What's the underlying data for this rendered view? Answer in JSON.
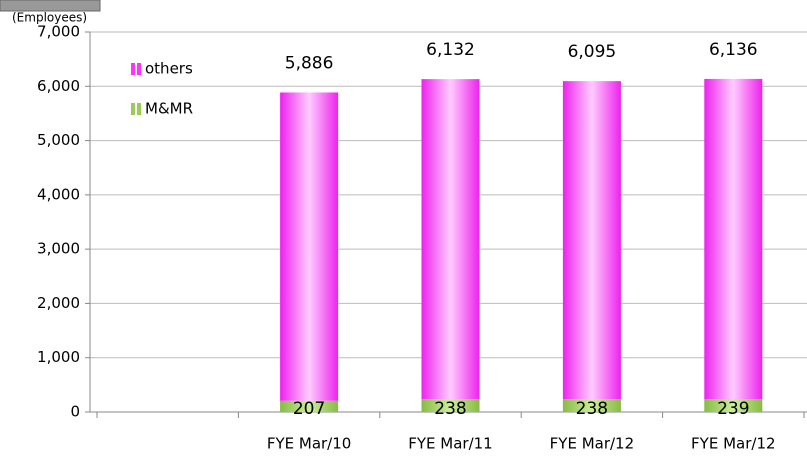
{
  "chart_data": {
    "type": "stacked_bar",
    "y_unit_label": "(Employees)",
    "categories": [
      null,
      "FYE Mar/10",
      "FYE Mar/11",
      "FYE Mar/12",
      "FYE Mar/12"
    ],
    "series": [
      {
        "name": "M&MR",
        "color": "#99cc55",
        "values": [
          null,
          207,
          238,
          238,
          239
        ]
      },
      {
        "name": "others",
        "color": "#ff33ff",
        "values": [
          null,
          5679,
          5894,
          5857,
          5897
        ]
      }
    ],
    "totals": [
      null,
      5886,
      6132,
      6095,
      6136
    ],
    "total_labels": [
      null,
      "5,886",
      "6,132",
      "6,095",
      "6,136"
    ],
    "ylim": [
      0,
      7000
    ],
    "yticks": [
      0,
      {
        "value": 1000,
        "label": "1,000"
      },
      {
        "value": 2000,
        "label": "2,000"
      },
      {
        "value": 3000,
        "label": "3,000"
      },
      {
        "value": 4000,
        "label": "4,000"
      },
      {
        "value": 5000,
        "label": "5,000"
      },
      {
        "value": 6000,
        "label": "6,000"
      },
      {
        "value": 7000,
        "label": "7,000"
      }
    ],
    "grid": true
  }
}
